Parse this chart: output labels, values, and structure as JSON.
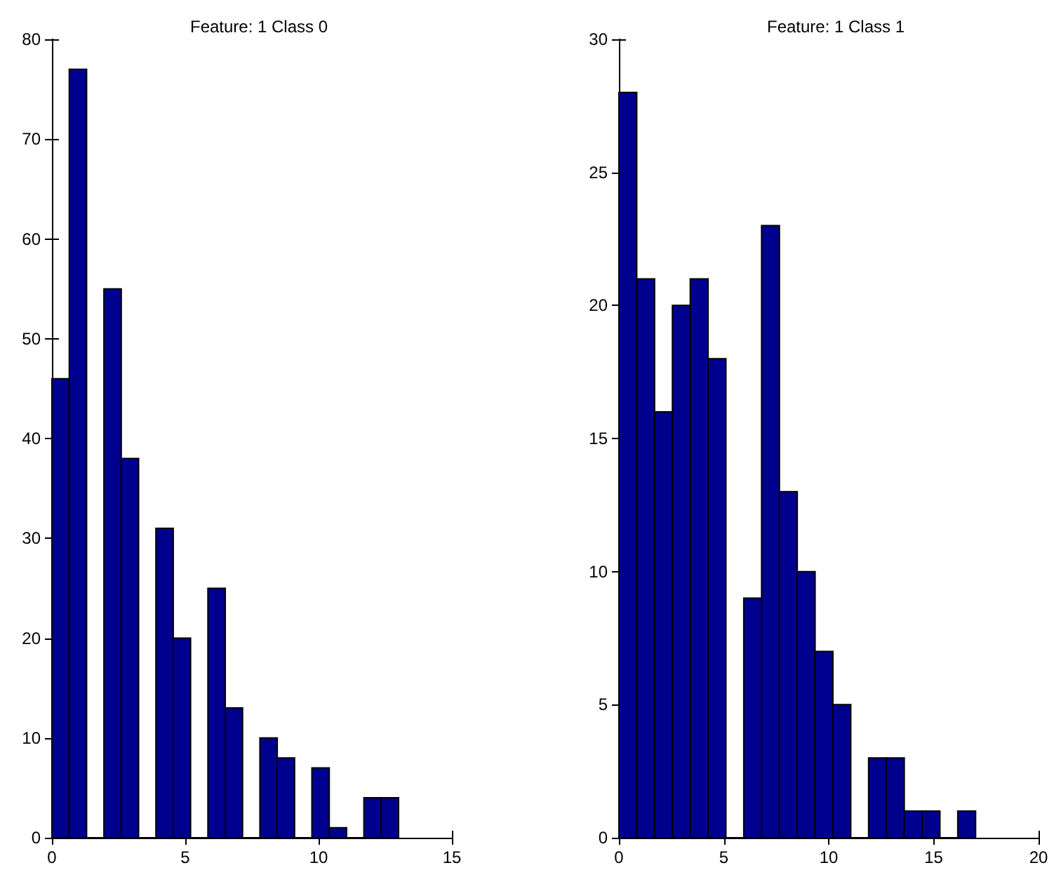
{
  "chart_data": [
    {
      "type": "histogram",
      "title": "Feature: 1 Class 0",
      "color": "#00008f",
      "bins": [
        0,
        0.65,
        1.3,
        1.95,
        2.6,
        3.25,
        3.9,
        4.55,
        5.2,
        5.85,
        6.5,
        7.15,
        7.8,
        8.45,
        9.1,
        9.75,
        10.4,
        11.05,
        11.7,
        12.35,
        13
      ],
      "values": [
        46,
        77,
        0,
        55,
        38,
        0,
        31,
        20,
        0,
        25,
        13,
        0,
        10,
        8,
        0,
        7,
        1,
        0,
        4,
        4
      ],
      "xlim": [
        0,
        15
      ],
      "xticks": [
        0,
        5,
        10,
        15
      ],
      "ylim": [
        0,
        80
      ],
      "yticks": [
        0,
        10,
        20,
        30,
        40,
        50,
        60,
        70,
        80
      ],
      "grid": false
    },
    {
      "type": "histogram",
      "title": "Feature: 1 Class 1",
      "color": "#00008f",
      "bins": [
        0,
        0.85,
        1.7,
        2.55,
        3.4,
        4.25,
        5.1,
        5.95,
        6.8,
        7.65,
        8.5,
        9.35,
        10.2,
        11.05,
        11.9,
        12.75,
        13.6,
        14.45,
        15.3,
        16.15,
        17
      ],
      "values": [
        28,
        21,
        16,
        20,
        21,
        18,
        0,
        9,
        23,
        13,
        10,
        7,
        5,
        0,
        3,
        3,
        1,
        1,
        0,
        1
      ],
      "xlim": [
        0,
        20
      ],
      "xticks": [
        0,
        5,
        10,
        15,
        20
      ],
      "ylim": [
        0,
        30
      ],
      "yticks": [
        0,
        5,
        10,
        15,
        20,
        25,
        30
      ],
      "grid": false
    }
  ]
}
